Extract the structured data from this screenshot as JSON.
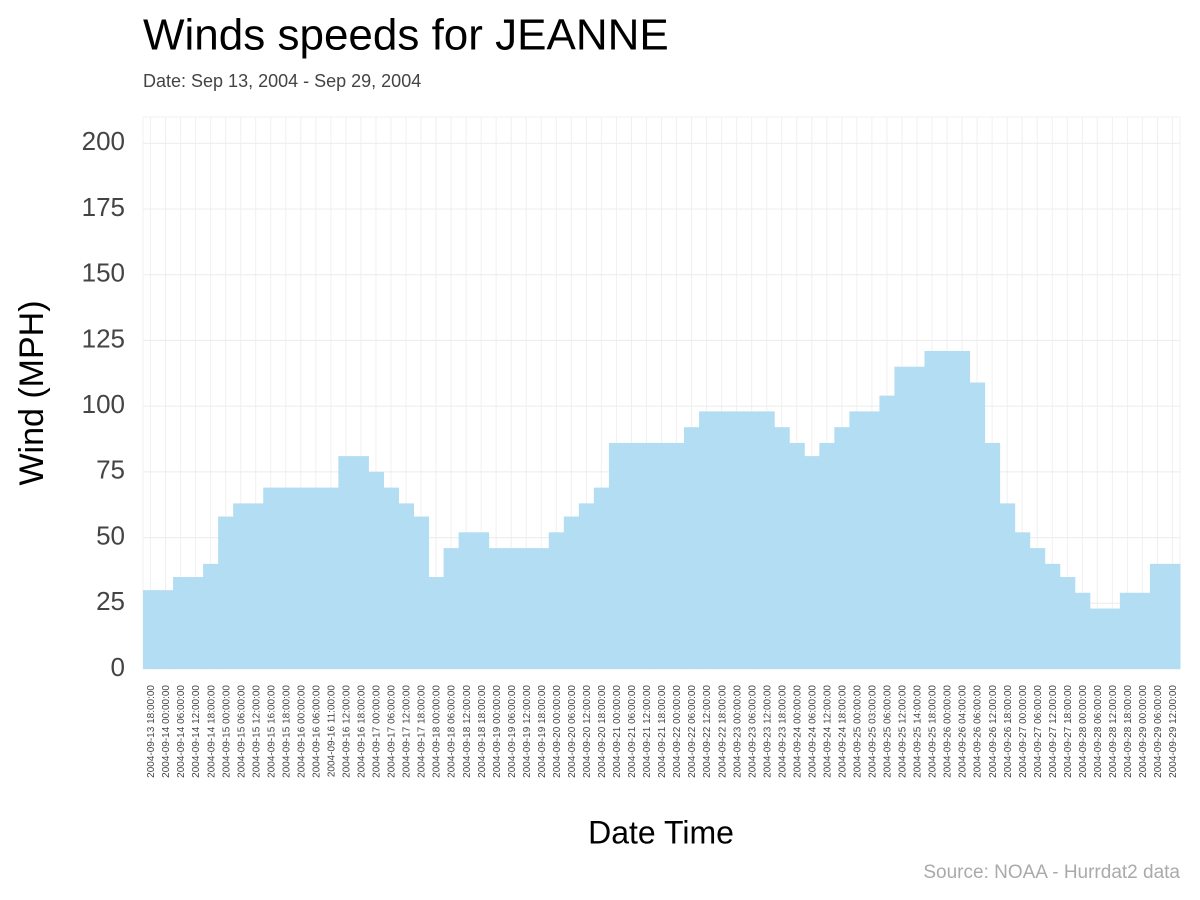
{
  "chart_data": {
    "type": "bar",
    "title": "Winds speeds for JEANNE",
    "subtitle": "Date:  Sep 13, 2004 - Sep 29, 2004",
    "x_label": "Date Time",
    "y_label": "Wind (MPH)",
    "source": "Source: NOAA - Hurrdat2 data",
    "color": "#b3ddf2",
    "grid": true,
    "ylim": [
      0,
      210
    ],
    "yticks": [
      0,
      25,
      50,
      75,
      100,
      125,
      150,
      175,
      200
    ],
    "categories": [
      "2004-09-13 18:00:00",
      "2004-09-14 00:00:00",
      "2004-09-14 06:00:00",
      "2004-09-14 12:00:00",
      "2004-09-14 18:00:00",
      "2004-09-15 00:00:00",
      "2004-09-15 06:00:00",
      "2004-09-15 12:00:00",
      "2004-09-15 16:00:00",
      "2004-09-15 18:00:00",
      "2004-09-16 00:00:00",
      "2004-09-16 06:00:00",
      "2004-09-16 11:00:00",
      "2004-09-16 12:00:00",
      "2004-09-16 18:00:00",
      "2004-09-17 00:00:00",
      "2004-09-17 06:00:00",
      "2004-09-17 12:00:00",
      "2004-09-17 18:00:00",
      "2004-09-18 00:00:00",
      "2004-09-18 06:00:00",
      "2004-09-18 12:00:00",
      "2004-09-18 18:00:00",
      "2004-09-19 00:00:00",
      "2004-09-19 06:00:00",
      "2004-09-19 12:00:00",
      "2004-09-19 18:00:00",
      "2004-09-20 00:00:00",
      "2004-09-20 06:00:00",
      "2004-09-20 12:00:00",
      "2004-09-20 18:00:00",
      "2004-09-21 00:00:00",
      "2004-09-21 06:00:00",
      "2004-09-21 12:00:00",
      "2004-09-21 18:00:00",
      "2004-09-22 00:00:00",
      "2004-09-22 06:00:00",
      "2004-09-22 12:00:00",
      "2004-09-22 18:00:00",
      "2004-09-23 00:00:00",
      "2004-09-23 06:00:00",
      "2004-09-23 12:00:00",
      "2004-09-23 18:00:00",
      "2004-09-24 00:00:00",
      "2004-09-24 06:00:00",
      "2004-09-24 12:00:00",
      "2004-09-24 18:00:00",
      "2004-09-25 00:00:00",
      "2004-09-25 03:00:00",
      "2004-09-25 06:00:00",
      "2004-09-25 12:00:00",
      "2004-09-25 14:00:00",
      "2004-09-25 18:00:00",
      "2004-09-26 00:00:00",
      "2004-09-26 04:00:00",
      "2004-09-26 06:00:00",
      "2004-09-26 12:00:00",
      "2004-09-26 18:00:00",
      "2004-09-27 00:00:00",
      "2004-09-27 06:00:00",
      "2004-09-27 12:00:00",
      "2004-09-27 18:00:00",
      "2004-09-28 00:00:00",
      "2004-09-28 06:00:00",
      "2004-09-28 12:00:00",
      "2004-09-28 18:00:00",
      "2004-09-29 00:00:00",
      "2004-09-29 06:00:00",
      "2004-09-29 12:00:00"
    ],
    "values": [
      30,
      30,
      35,
      35,
      40,
      58,
      63,
      63,
      69,
      69,
      69,
      69,
      69,
      81,
      81,
      75,
      69,
      63,
      58,
      35,
      46,
      52,
      52,
      46,
      46,
      46,
      46,
      52,
      58,
      63,
      69,
      86,
      86,
      86,
      86,
      86,
      92,
      98,
      98,
      98,
      98,
      98,
      92,
      86,
      81,
      86,
      92,
      98,
      98,
      104,
      115,
      115,
      121,
      121,
      121,
      109,
      86,
      63,
      52,
      46,
      40,
      35,
      29,
      23,
      23,
      29,
      29,
      40,
      40
    ]
  }
}
